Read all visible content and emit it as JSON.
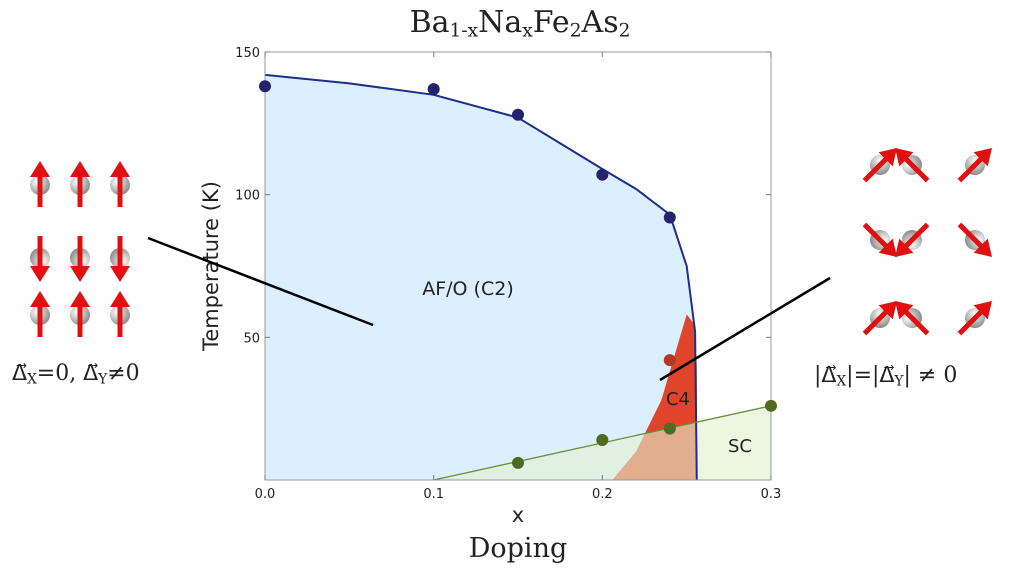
{
  "chart_data": {
    "type": "scatter",
    "title": [
      {
        "text": "Ba"
      },
      {
        "text": "1-x",
        "sub": true
      },
      {
        "text": "Na"
      },
      {
        "text": "x",
        "sub": true
      },
      {
        "text": "Fe"
      },
      {
        "text": "2",
        "sub": true
      },
      {
        "text": "As"
      },
      {
        "text": "2",
        "sub": true
      }
    ],
    "x_label": "x",
    "x_label_2": "Doping",
    "y_label": "Temperature (K)",
    "xlim": [
      0,
      0.3
    ],
    "ylim": [
      0,
      150
    ],
    "xticks": [
      {
        "value": 0,
        "label": "0.0"
      },
      0.1,
      0.2,
      0.3
    ],
    "yticks": [
      50,
      100,
      150
    ],
    "series": [
      {
        "color": "#23236e",
        "x": [
          0,
          0.1,
          0.15,
          0.2,
          0.24
        ],
        "values": [
          138,
          137,
          128,
          107,
          92
        ]
      },
      {
        "color": "#b33a22",
        "x": [
          0.24
        ],
        "values": [
          42
        ]
      },
      {
        "color": "#4f6b1f",
        "x": [
          0.15,
          0.2,
          0.24,
          0.3
        ],
        "values": [
          6,
          14,
          18,
          26
        ]
      }
    ],
    "regions": [
      {
        "label": "AF/O (C2)",
        "fill": "#dcefff",
        "stroke": "#1c2f8a",
        "x": [
          0,
          0.05,
          0.1,
          0.15,
          0.2,
          0.22,
          0.24,
          0.25,
          0.255,
          0.256
        ],
        "values": [
          142,
          139,
          135,
          127,
          109,
          102,
          93,
          75,
          52,
          0
        ]
      },
      {
        "label": "C4",
        "fill": "#e0442a",
        "x": [
          0.206,
          0.22,
          0.235,
          0.245,
          0.25,
          0.254,
          0.256,
          0.256
        ],
        "values": [
          0,
          10,
          28,
          48,
          58,
          55,
          40,
          0
        ]
      },
      {
        "label": "SC",
        "fill": "rgba(226,240,206,0.62)",
        "stroke": "#6b8e3a",
        "x": [
          0.1,
          0.3
        ],
        "values": [
          0,
          26
        ]
      }
    ],
    "annotations": [
      [
        {
          "text": "Δ⃗"
        },
        {
          "text": "X",
          "sub": true
        },
        {
          "text": "=0, Δ⃗"
        },
        {
          "text": "Y",
          "sub": true
        },
        {
          "text": "≠0"
        }
      ],
      [
        {
          "text": "|Δ⃗"
        },
        {
          "text": "X",
          "sub": true
        },
        {
          "text": "|=|Δ⃗"
        },
        {
          "text": "Y",
          "sub": true
        },
        {
          "text": "| ≠ 0"
        }
      ]
    ]
  }
}
